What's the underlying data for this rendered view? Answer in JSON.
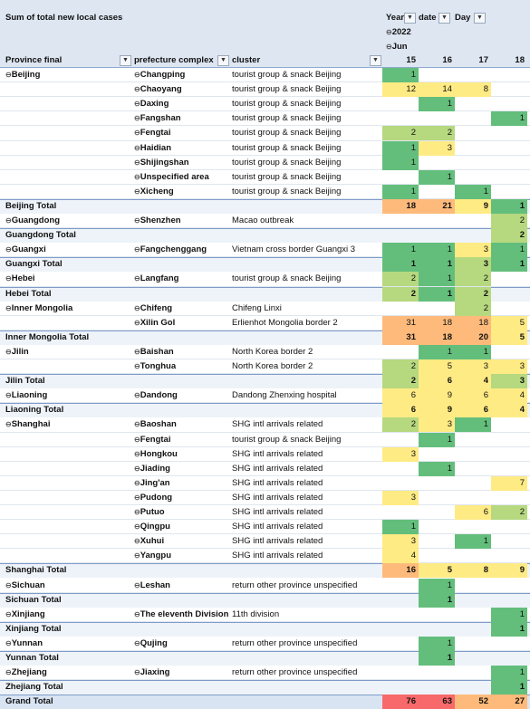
{
  "header": {
    "title": "Sum of total new local cases",
    "row_labels": {
      "province": "Province final",
      "prefecture": "prefecture complex",
      "cluster": "cluster"
    },
    "col_fields": {
      "year": "Year",
      "date": "date",
      "day": "Day"
    },
    "year_value": "2022",
    "month_value": "Jun",
    "days": [
      "15",
      "16",
      "17",
      "18"
    ]
  },
  "colors": {
    "green": "#63be7b",
    "yellow": "#ffeb84",
    "orange": "#fdba7a",
    "red": "#f8696b",
    "lightgreen": "#b6d87f",
    "header_band": "#dde6f1"
  },
  "rows": [
    {
      "type": "detail",
      "province": "Beijing",
      "prefecture": "Changping",
      "cluster": "tourist group & snack Beijing",
      "values": [
        "1",
        "",
        "",
        ""
      ]
    },
    {
      "type": "detail",
      "province": "",
      "prefecture": "Chaoyang",
      "cluster": "tourist group & snack Beijing",
      "values": [
        "12",
        "14",
        "8",
        ""
      ]
    },
    {
      "type": "detail",
      "province": "",
      "prefecture": "Daxing",
      "cluster": "tourist group & snack Beijing",
      "values": [
        "",
        "1",
        "",
        ""
      ]
    },
    {
      "type": "detail",
      "province": "",
      "prefecture": "Fangshan",
      "cluster": "tourist group & snack Beijing",
      "values": [
        "",
        "",
        "",
        "1"
      ]
    },
    {
      "type": "detail",
      "province": "",
      "prefecture": "Fengtai",
      "cluster": "tourist group & snack Beijing",
      "values": [
        "2",
        "2",
        "",
        ""
      ]
    },
    {
      "type": "detail",
      "province": "",
      "prefecture": "Haidian",
      "cluster": "tourist group & snack Beijing",
      "values": [
        "1",
        "3",
        "",
        ""
      ]
    },
    {
      "type": "detail",
      "province": "",
      "prefecture": "Shijingshan",
      "cluster": "tourist group & snack Beijing",
      "values": [
        "1",
        "",
        "",
        ""
      ]
    },
    {
      "type": "detail",
      "province": "",
      "prefecture": "Unspecified area",
      "cluster": "tourist group & snack Beijing",
      "values": [
        "",
        "1",
        "",
        ""
      ]
    },
    {
      "type": "detail",
      "province": "",
      "prefecture": "Xicheng",
      "cluster": "tourist group & snack Beijing",
      "values": [
        "1",
        "",
        "1",
        ""
      ]
    },
    {
      "type": "total",
      "province": "Beijing Total",
      "values": [
        "18",
        "21",
        "9",
        "1"
      ]
    },
    {
      "type": "detail",
      "province": "Guangdong",
      "prefecture": "Shenzhen",
      "cluster": "Macao outbreak",
      "values": [
        "",
        "",
        "",
        "2"
      ]
    },
    {
      "type": "total",
      "province": "Guangdong Total",
      "values": [
        "",
        "",
        "",
        "2"
      ]
    },
    {
      "type": "detail",
      "province": "Guangxi",
      "prefecture": "Fangchenggang",
      "cluster": "Vietnam cross border Guangxi 3",
      "values": [
        "1",
        "1",
        "3",
        "1"
      ]
    },
    {
      "type": "total",
      "province": "Guangxi Total",
      "values": [
        "1",
        "1",
        "3",
        "1"
      ]
    },
    {
      "type": "detail",
      "province": "Hebei",
      "prefecture": "Langfang",
      "cluster": "tourist group & snack Beijing",
      "values": [
        "2",
        "1",
        "2",
        ""
      ]
    },
    {
      "type": "total",
      "province": "Hebei Total",
      "values": [
        "2",
        "1",
        "2",
        ""
      ]
    },
    {
      "type": "detail",
      "province": "Inner Mongolia",
      "prefecture": "Chifeng",
      "cluster": "Chifeng Linxi",
      "values": [
        "",
        "",
        "2",
        ""
      ]
    },
    {
      "type": "detail",
      "province": "",
      "prefecture": "Xilin Gol",
      "cluster": "Erlienhot Mongolia border 2",
      "values": [
        "31",
        "18",
        "18",
        "5"
      ]
    },
    {
      "type": "total",
      "province": "Inner Mongolia Total",
      "values": [
        "31",
        "18",
        "20",
        "5"
      ]
    },
    {
      "type": "detail",
      "province": "Jilin",
      "prefecture": "Baishan",
      "cluster": "North Korea border 2",
      "values": [
        "",
        "1",
        "1",
        ""
      ]
    },
    {
      "type": "detail",
      "province": "",
      "prefecture": "Tonghua",
      "cluster": "North Korea border 2",
      "values": [
        "2",
        "5",
        "3",
        "3"
      ]
    },
    {
      "type": "total",
      "province": "Jilin Total",
      "values": [
        "2",
        "6",
        "4",
        "3"
      ]
    },
    {
      "type": "detail",
      "province": "Liaoning",
      "prefecture": "Dandong",
      "cluster": "Dandong Zhenxing hospital",
      "values": [
        "6",
        "9",
        "6",
        "4"
      ]
    },
    {
      "type": "total",
      "province": "Liaoning Total",
      "values": [
        "6",
        "9",
        "6",
        "4"
      ]
    },
    {
      "type": "detail",
      "province": "Shanghai",
      "prefecture": "Baoshan",
      "cluster": "SHG intl arrivals related",
      "values": [
        "2",
        "3",
        "1",
        ""
      ]
    },
    {
      "type": "detail",
      "province": "",
      "prefecture": "Fengtai",
      "cluster": "tourist group & snack Beijing",
      "values": [
        "",
        "1",
        "",
        ""
      ]
    },
    {
      "type": "detail",
      "province": "",
      "prefecture": "Hongkou",
      "cluster": "SHG intl arrivals related",
      "values": [
        "3",
        "",
        "",
        ""
      ]
    },
    {
      "type": "detail",
      "province": "",
      "prefecture": "Jiading",
      "cluster": "SHG intl arrivals related",
      "values": [
        "",
        "1",
        "",
        ""
      ]
    },
    {
      "type": "detail",
      "province": "",
      "prefecture": "Jing'an",
      "cluster": "SHG intl arrivals related",
      "values": [
        "",
        "",
        "",
        "7"
      ]
    },
    {
      "type": "detail",
      "province": "",
      "prefecture": "Pudong",
      "cluster": "SHG intl arrivals related",
      "values": [
        "3",
        "",
        "",
        ""
      ]
    },
    {
      "type": "detail",
      "province": "",
      "prefecture": "Putuo",
      "cluster": "SHG intl arrivals related",
      "values": [
        "",
        "",
        "6",
        "2"
      ]
    },
    {
      "type": "detail",
      "province": "",
      "prefecture": "Qingpu",
      "cluster": "SHG intl arrivals related",
      "values": [
        "1",
        "",
        "",
        ""
      ]
    },
    {
      "type": "detail",
      "province": "",
      "prefecture": "Xuhui",
      "cluster": "SHG intl arrivals related",
      "values": [
        "3",
        "",
        "1",
        ""
      ]
    },
    {
      "type": "detail",
      "province": "",
      "prefecture": "Yangpu",
      "cluster": "SHG intl arrivals related",
      "values": [
        "4",
        "",
        "",
        ""
      ]
    },
    {
      "type": "total",
      "province": "Shanghai Total",
      "values": [
        "16",
        "5",
        "8",
        "9"
      ]
    },
    {
      "type": "detail",
      "province": "Sichuan",
      "prefecture": "Leshan",
      "cluster": "return other province unspecified",
      "values": [
        "",
        "1",
        "",
        ""
      ]
    },
    {
      "type": "total",
      "province": "Sichuan Total",
      "values": [
        "",
        "1",
        "",
        ""
      ]
    },
    {
      "type": "detail",
      "province": "Xinjiang",
      "prefecture": "The eleventh Division",
      "cluster": "11th division",
      "values": [
        "",
        "",
        "",
        "1"
      ]
    },
    {
      "type": "total",
      "province": "Xinjiang Total",
      "values": [
        "",
        "",
        "",
        "1"
      ]
    },
    {
      "type": "detail",
      "province": "Yunnan",
      "prefecture": "Qujing",
      "cluster": "return other province unspecified",
      "values": [
        "",
        "1",
        "",
        ""
      ]
    },
    {
      "type": "total",
      "province": "Yunnan Total",
      "values": [
        "",
        "1",
        "",
        ""
      ]
    },
    {
      "type": "detail",
      "province": "Zhejiang",
      "prefecture": "Jiaxing",
      "cluster": "return other province unspecified",
      "values": [
        "",
        "",
        "",
        "1"
      ]
    },
    {
      "type": "total",
      "province": "Zhejiang Total",
      "values": [
        "",
        "",
        "",
        "1"
      ]
    },
    {
      "type": "grand",
      "province": "Grand Total",
      "values": [
        "76",
        "63",
        "52",
        "27"
      ]
    }
  ]
}
